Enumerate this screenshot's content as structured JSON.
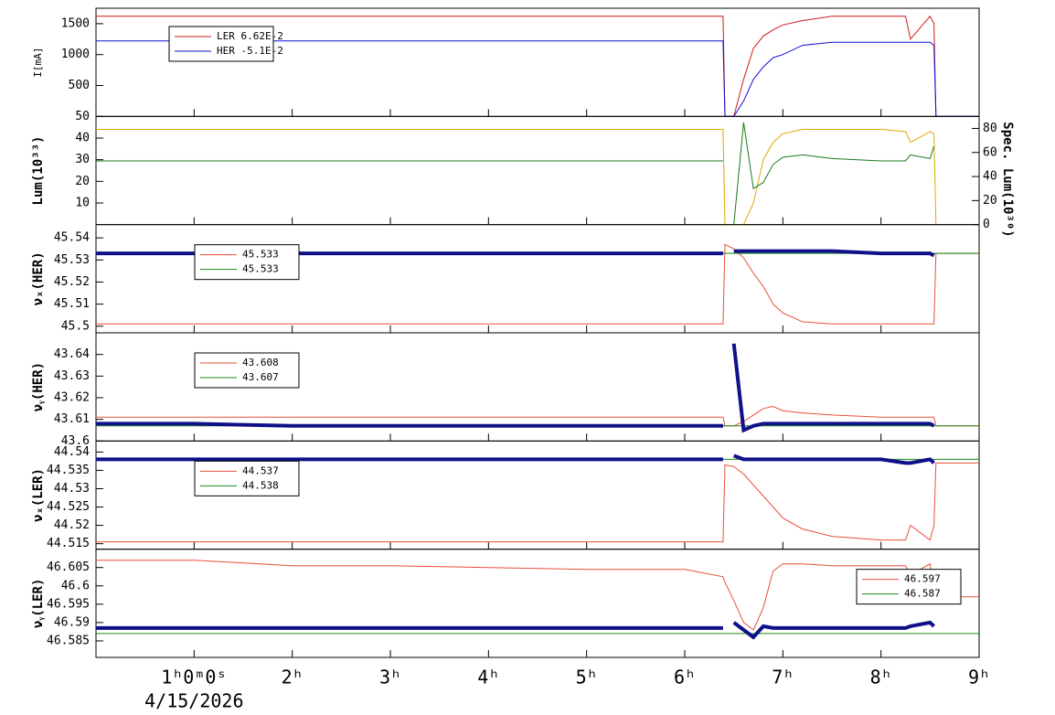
{
  "chart_data": [
    {
      "type": "line",
      "ylabel": "I[mA]",
      "legend": "upper left",
      "x": [
        0,
        1,
        2,
        3,
        4,
        5,
        6,
        6.39,
        6.41,
        6.5,
        6.6,
        6.7,
        6.8,
        6.9,
        7,
        7.2,
        7.5,
        8,
        8.25,
        8.3,
        8.5,
        8.54,
        8.56,
        9
      ],
      "ylim": [
        0,
        1750
      ],
      "yticks": [
        500,
        1000,
        1500
      ],
      "series": [
        {
          "name": "LER  6.62E-2",
          "color": "#d01818",
          "values": [
            1620,
            1620,
            1620,
            1620,
            1620,
            1620,
            1620,
            1620,
            0,
            0,
            600,
            1100,
            1300,
            1400,
            1480,
            1550,
            1620,
            1620,
            1620,
            1250,
            1620,
            1500,
            0,
            0
          ]
        },
        {
          "name": "HER  -5.1E-2",
          "color": "#1010d0",
          "values": [
            1220,
            1220,
            1220,
            1220,
            1220,
            1220,
            1220,
            1220,
            0,
            0,
            250,
            600,
            800,
            950,
            1000,
            1150,
            1200,
            1200,
            1200,
            1200,
            1200,
            1150,
            0,
            0
          ]
        }
      ]
    },
    {
      "type": "line",
      "ylabel": "Lum(10³³)",
      "y2label": "Spec. Lum(10³⁰)",
      "x": [
        0,
        1,
        2,
        3,
        4,
        5,
        6,
        6.39,
        6.41,
        6.5,
        6.6,
        6.7,
        6.8,
        6.9,
        7,
        7.2,
        7.5,
        8,
        8.25,
        8.3,
        8.5,
        8.54,
        8.56,
        9
      ],
      "ylim": [
        0,
        50
      ],
      "yticks": [
        10,
        20,
        30,
        40,
        50
      ],
      "y2lim": [
        0,
        90
      ],
      "y2ticks": [
        0,
        20,
        40,
        60,
        80
      ],
      "series": [
        {
          "color": "#e0a800",
          "values": [
            44,
            44,
            44,
            44,
            44,
            44,
            44,
            44,
            0,
            0,
            0,
            10,
            30,
            38,
            42,
            44,
            44,
            44,
            43,
            38,
            43,
            42,
            0,
            null
          ]
        },
        {
          "color": "#1a7a1a",
          "axis": "y2",
          "values": [
            53,
            53,
            53,
            53,
            53,
            53,
            53,
            53,
            null,
            0,
            85,
            30,
            35,
            50,
            56,
            58,
            55,
            53,
            53,
            58,
            55,
            65,
            null,
            null
          ]
        }
      ]
    },
    {
      "type": "line",
      "ylabel": "νₓ(HER)",
      "legend": "upper left",
      "x": [
        0,
        1,
        2,
        3,
        4,
        5,
        6,
        6.39,
        6.41,
        6.5,
        6.6,
        6.7,
        6.8,
        6.9,
        7,
        7.2,
        7.5,
        8,
        8.25,
        8.3,
        8.5,
        8.54,
        8.56,
        9
      ],
      "ylim": [
        45.497,
        45.546
      ],
      "yticks": [
        45.5,
        45.51,
        45.52,
        45.53,
        45.54
      ],
      "series": [
        {
          "name": "45.533",
          "color": "#e8503a",
          "values": [
            45.501,
            45.501,
            45.501,
            45.501,
            45.501,
            45.501,
            45.501,
            45.501,
            45.537,
            45.535,
            45.531,
            45.524,
            45.518,
            45.51,
            45.506,
            45.502,
            45.501,
            45.501,
            45.501,
            45.501,
            45.501,
            45.501,
            45.533,
            45.533
          ]
        },
        {
          "name": "45.533",
          "color": "#1a8a1a",
          "values": [
            45.533,
            45.533,
            45.533,
            45.533,
            45.533,
            45.533,
            45.533,
            45.533,
            45.533,
            45.533,
            45.533,
            45.533,
            45.533,
            45.533,
            45.533,
            45.533,
            45.533,
            45.533,
            45.533,
            45.533,
            45.533,
            45.533,
            45.533,
            45.533
          ]
        },
        {
          "color": "#10108a",
          "thick": true,
          "values": [
            45.533,
            45.533,
            45.533,
            45.533,
            45.533,
            45.533,
            45.533,
            45.533,
            null,
            45.534,
            45.534,
            45.534,
            45.534,
            45.534,
            45.534,
            45.534,
            45.534,
            45.533,
            45.533,
            45.533,
            45.533,
            45.532,
            null,
            null
          ]
        }
      ]
    },
    {
      "type": "line",
      "ylabel": "νᵧ(HER)",
      "legend": "upper left",
      "x": [
        0,
        1,
        2,
        3,
        4,
        5,
        6,
        6.39,
        6.41,
        6.5,
        6.6,
        6.7,
        6.8,
        6.9,
        7,
        7.2,
        7.5,
        8,
        8.25,
        8.3,
        8.5,
        8.54,
        8.56,
        9
      ],
      "ylim": [
        43.6,
        43.65
      ],
      "yticks": [
        43.6,
        43.61,
        43.62,
        43.63,
        43.64
      ],
      "series": [
        {
          "name": "43.608",
          "color": "#e8503a",
          "values": [
            43.611,
            43.611,
            43.611,
            43.611,
            43.611,
            43.611,
            43.611,
            43.611,
            43.607,
            43.607,
            43.609,
            43.612,
            43.615,
            43.616,
            43.614,
            43.613,
            43.612,
            43.611,
            43.611,
            43.611,
            43.611,
            43.611,
            43.607,
            43.607
          ]
        },
        {
          "name": "43.607",
          "color": "#1a8a1a",
          "values": [
            43.607,
            43.607,
            43.607,
            43.607,
            43.607,
            43.607,
            43.607,
            43.607,
            43.607,
            43.607,
            43.607,
            43.607,
            43.607,
            43.607,
            43.607,
            43.607,
            43.607,
            43.607,
            43.607,
            43.607,
            43.607,
            43.607,
            43.607,
            43.607
          ]
        },
        {
          "color": "#10108a",
          "thick": true,
          "values": [
            43.608,
            43.608,
            43.607,
            43.607,
            43.607,
            43.607,
            43.607,
            43.607,
            null,
            43.645,
            43.605,
            43.607,
            43.608,
            43.608,
            43.608,
            43.608,
            43.608,
            43.608,
            43.608,
            43.608,
            43.608,
            43.607,
            null,
            null
          ]
        }
      ]
    },
    {
      "type": "line",
      "ylabel": "νₓ(LER)",
      "legend": "upper left",
      "x": [
        0,
        1,
        2,
        3,
        4,
        5,
        6,
        6.39,
        6.41,
        6.5,
        6.6,
        6.7,
        6.8,
        6.9,
        7,
        7.2,
        7.5,
        8,
        8.25,
        8.3,
        8.5,
        8.54,
        8.56,
        9
      ],
      "ylim": [
        44.5135,
        44.543
      ],
      "yticks": [
        44.515,
        44.52,
        44.525,
        44.53,
        44.535,
        44.54
      ],
      "series": [
        {
          "name": "44.537",
          "color": "#e8503a",
          "values": [
            44.5155,
            44.5155,
            44.5155,
            44.5155,
            44.5155,
            44.5155,
            44.5155,
            44.5155,
            44.5365,
            44.536,
            44.534,
            44.531,
            44.528,
            44.525,
            44.522,
            44.519,
            44.517,
            44.516,
            44.516,
            44.52,
            44.516,
            44.52,
            44.537,
            44.537
          ]
        },
        {
          "name": "44.538",
          "color": "#1a8a1a",
          "values": [
            44.538,
            44.538,
            44.538,
            44.538,
            44.538,
            44.538,
            44.538,
            44.538,
            44.538,
            44.538,
            44.538,
            44.538,
            44.538,
            44.538,
            44.538,
            44.538,
            44.538,
            44.538,
            44.538,
            44.538,
            44.538,
            44.538,
            44.538,
            44.538
          ]
        },
        {
          "color": "#10108a",
          "thick": true,
          "values": [
            44.538,
            44.538,
            44.538,
            44.538,
            44.538,
            44.538,
            44.538,
            44.538,
            null,
            44.539,
            44.538,
            44.538,
            44.538,
            44.538,
            44.538,
            44.538,
            44.538,
            44.538,
            44.537,
            44.537,
            44.538,
            44.537,
            null,
            null
          ]
        }
      ]
    },
    {
      "type": "line",
      "ylabel": "νᵧ(LER)",
      "legend": "upper right",
      "x": [
        0,
        1,
        2,
        3,
        4,
        5,
        6,
        6.39,
        6.41,
        6.5,
        6.6,
        6.7,
        6.8,
        6.9,
        7,
        7.2,
        7.5,
        8,
        8.25,
        8.3,
        8.5,
        8.54,
        8.56,
        9
      ],
      "ylim": [
        46.5805,
        46.61
      ],
      "yticks": [
        46.585,
        46.59,
        46.595,
        46.6,
        46.605
      ],
      "xlim": [
        0,
        9
      ],
      "xticks": [
        {
          "value": 1,
          "label": "1ʰ0ᵐ0ˢ"
        },
        {
          "value": 2,
          "label": "2ʰ"
        },
        {
          "value": 3,
          "label": "3ʰ"
        },
        {
          "value": 4,
          "label": "4ʰ"
        },
        {
          "value": 5,
          "label": "5ʰ"
        },
        {
          "value": 6,
          "label": "6ʰ"
        },
        {
          "value": 7,
          "label": "7ʰ"
        },
        {
          "value": 8,
          "label": "8ʰ"
        },
        {
          "value": 9,
          "label": "9ʰ"
        }
      ],
      "xlabel": "4/15/2026",
      "series": [
        {
          "name": "46.597",
          "color": "#e8503a",
          "values": [
            46.607,
            46.607,
            46.6055,
            46.6055,
            46.605,
            46.6045,
            46.6045,
            46.6025,
            46.601,
            46.596,
            46.59,
            46.588,
            46.594,
            46.604,
            46.606,
            46.606,
            46.6055,
            46.6055,
            46.6055,
            46.603,
            46.606,
            46.597,
            46.597,
            46.597
          ]
        },
        {
          "name": "46.587",
          "color": "#1a8a1a",
          "values": [
            46.587,
            46.587,
            46.587,
            46.587,
            46.587,
            46.587,
            46.587,
            46.587,
            46.587,
            46.587,
            46.587,
            46.587,
            46.587,
            46.587,
            46.587,
            46.587,
            46.587,
            46.587,
            46.587,
            46.587,
            46.587,
            46.587,
            46.587,
            46.587
          ]
        },
        {
          "color": "#10108a",
          "thick": true,
          "values": [
            46.5885,
            46.5885,
            46.5885,
            46.5885,
            46.5885,
            46.5885,
            46.5885,
            46.5885,
            null,
            46.59,
            46.588,
            46.586,
            46.589,
            46.5885,
            46.5885,
            46.5885,
            46.5885,
            46.5885,
            46.5885,
            46.589,
            46.59,
            46.589,
            null,
            null
          ]
        }
      ]
    }
  ]
}
